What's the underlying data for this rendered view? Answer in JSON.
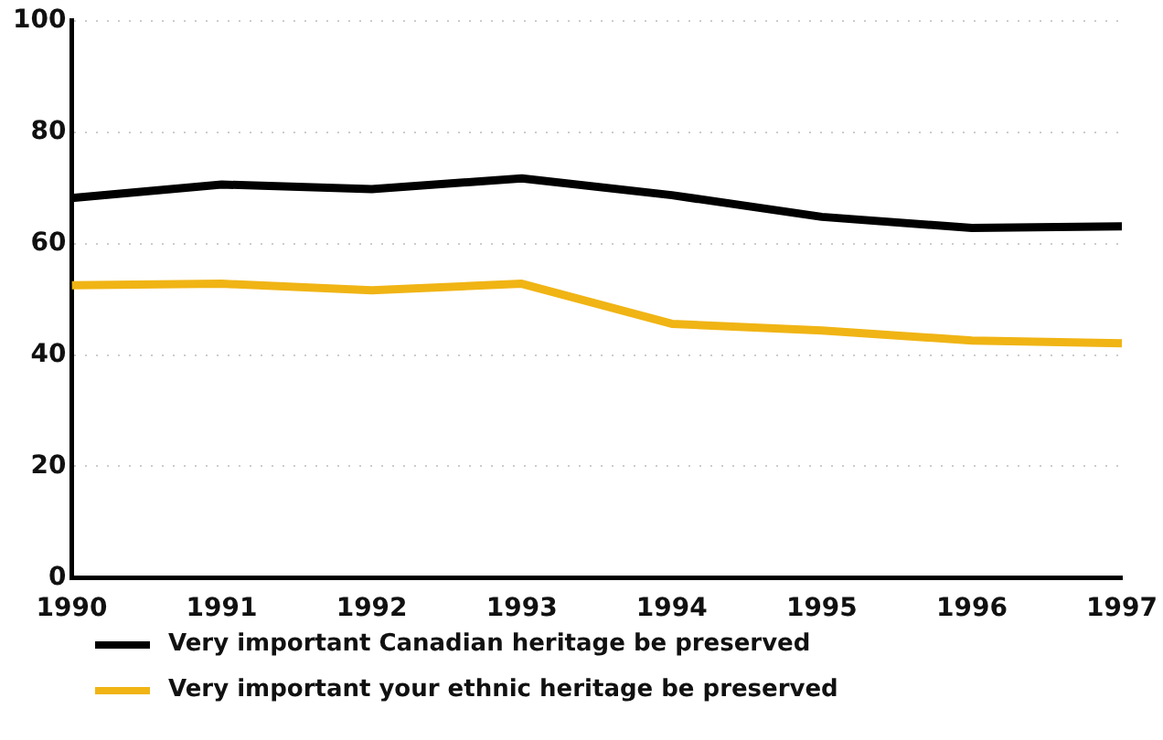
{
  "chart_data": {
    "type": "line",
    "x": [
      1990,
      1991,
      1992,
      1993,
      1994,
      1995,
      1996,
      1997
    ],
    "xlim": [
      1990,
      1997
    ],
    "xticks": [
      1990,
      1991,
      1992,
      1993,
      1994,
      1995,
      1996,
      1997
    ],
    "ylim": [
      0,
      100
    ],
    "yticks": [
      0,
      20,
      40,
      60,
      80,
      100
    ],
    "grid": "y",
    "legend": "bottom",
    "marker": "none",
    "line_style": "solid",
    "series": [
      {
        "name": "Very important Canadian heritage be preserved",
        "color": "#000000",
        "values": [
          68.2,
          70.6,
          69.8,
          71.7,
          68.7,
          64.8,
          62.8,
          63.1
        ]
      },
      {
        "name": "Very important your ethnic heritage be preserved",
        "color": "#f0b414",
        "values": [
          52.5,
          52.8,
          51.6,
          52.8,
          45.6,
          44.4,
          42.6,
          42.1
        ]
      }
    ]
  }
}
